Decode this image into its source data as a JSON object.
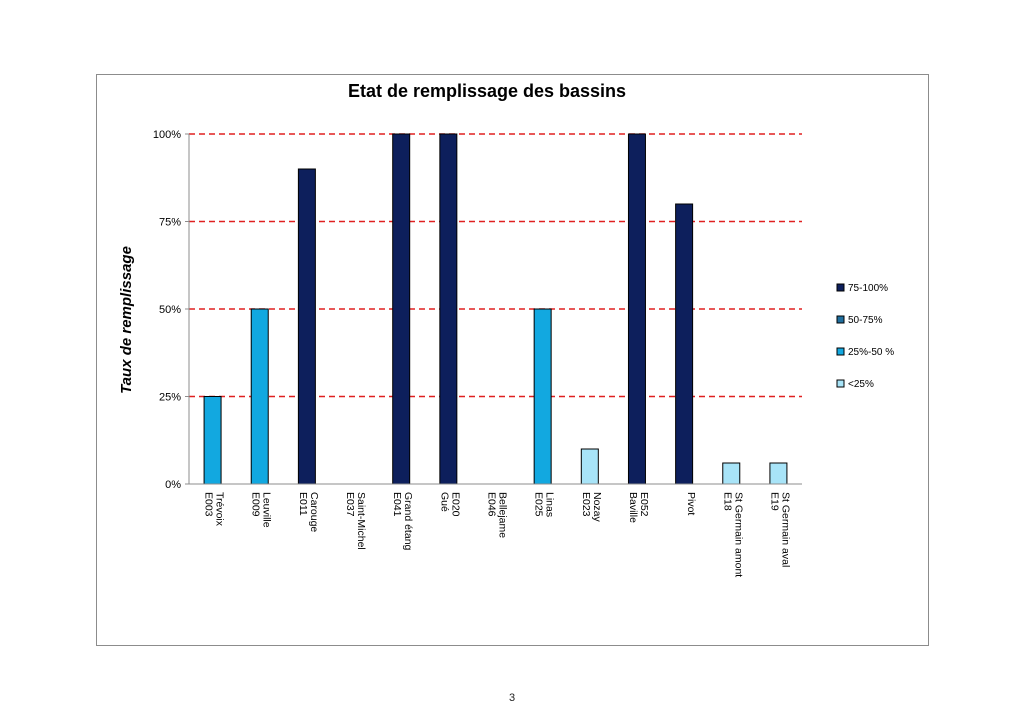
{
  "page": {
    "number": "3"
  },
  "chart_data": {
    "type": "bar",
    "title": "Etat de remplissage des bassins",
    "xlabel": "",
    "ylabel": "Taux de remplissage",
    "ylim": [
      0,
      100
    ],
    "yticks": [
      0,
      25,
      50,
      75,
      100
    ],
    "ytick_labels": [
      "0%",
      "25%",
      "50%",
      "75%",
      "100%"
    ],
    "gridlines": {
      "values": [
        25,
        50,
        75,
        100
      ],
      "style": "dashed",
      "color": "#e02020"
    },
    "categories": [
      [
        "Trévoix",
        "E003"
      ],
      [
        "Leuville",
        "E009"
      ],
      [
        "Carouge",
        "E011"
      ],
      [
        "Saint-Michel",
        "E037"
      ],
      [
        "Grand étang",
        "E041"
      ],
      [
        "E020",
        "Gué"
      ],
      [
        "Bellejame",
        "E046"
      ],
      [
        "Linas",
        "E025"
      ],
      [
        "Nozay",
        "E023"
      ],
      [
        "E052",
        "Baville"
      ],
      [
        "Pivot",
        ""
      ],
      [
        "St Germain amont",
        "E18"
      ],
      [
        "St Germain aval",
        "E19"
      ]
    ],
    "values": [
      25,
      50,
      90,
      0,
      100,
      100,
      0,
      50,
      10,
      100,
      80,
      6,
      6
    ],
    "bar_classes": [
      "25%-50 %",
      "25%-50 %",
      "75-100%",
      "",
      "75-100%",
      "75-100%",
      "",
      "25%-50 %",
      "<25%",
      "75-100%",
      "75-100%",
      "<25%",
      "<25%"
    ],
    "legend": {
      "position": "right",
      "entries": [
        {
          "label": "75-100%",
          "color": "#0d1f5c"
        },
        {
          "label": "50-75%",
          "color": "#1f6e9e"
        },
        {
          "label": "25%-50 %",
          "color": "#12a8e0"
        },
        {
          "label": "<25%",
          "color": "#a8e4f8"
        }
      ]
    }
  }
}
